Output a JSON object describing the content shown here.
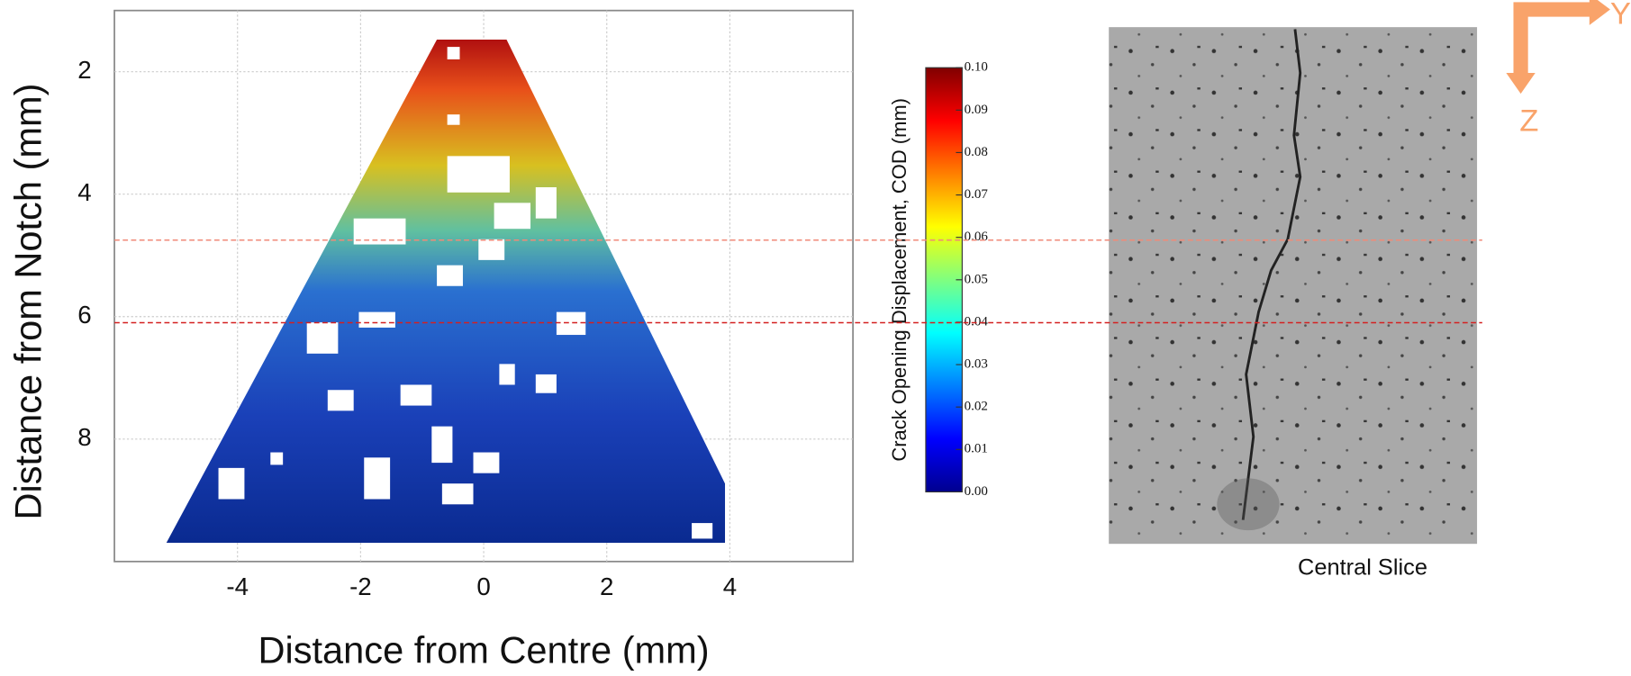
{
  "chart_data": {
    "type": "heatmap",
    "xlabel": "Distance from Centre (mm)",
    "ylabel": "Distance from Notch (mm)",
    "xlim": [
      -6,
      6
    ],
    "ylim": [
      10,
      1
    ],
    "xticks": [
      -4,
      -2,
      0,
      2,
      4
    ],
    "yticks": [
      2,
      4,
      6,
      8
    ],
    "grid": true,
    "colorbar": {
      "label": "Crack Opening Displacement, COD (mm)",
      "lim": [
        0,
        0.1
      ],
      "ticks": [
        {
          "value": 0,
          "label": "0.00"
        },
        {
          "value": 0.01,
          "label": "0.01"
        },
        {
          "value": 0.02,
          "label": "0.02"
        },
        {
          "value": 0.03,
          "label": "0.03"
        },
        {
          "value": 0.04,
          "label": "0.04"
        },
        {
          "value": 0.05,
          "label": "0.05"
        },
        {
          "value": 0.06,
          "label": "0.06"
        },
        {
          "value": 0.07,
          "label": "0.07"
        },
        {
          "value": 0.08,
          "label": "0.08"
        },
        {
          "value": 0.09,
          "label": "0.09"
        },
        {
          "value": 0.1,
          "label": "0.10"
        }
      ]
    },
    "reference_lines": [
      {
        "value": 4.75,
        "color": "#f08a78"
      },
      {
        "value": 6.1,
        "color": "#d42020"
      }
    ]
  },
  "image": {
    "caption": "Central Slice",
    "axes": [
      "Y",
      "Z"
    ]
  }
}
